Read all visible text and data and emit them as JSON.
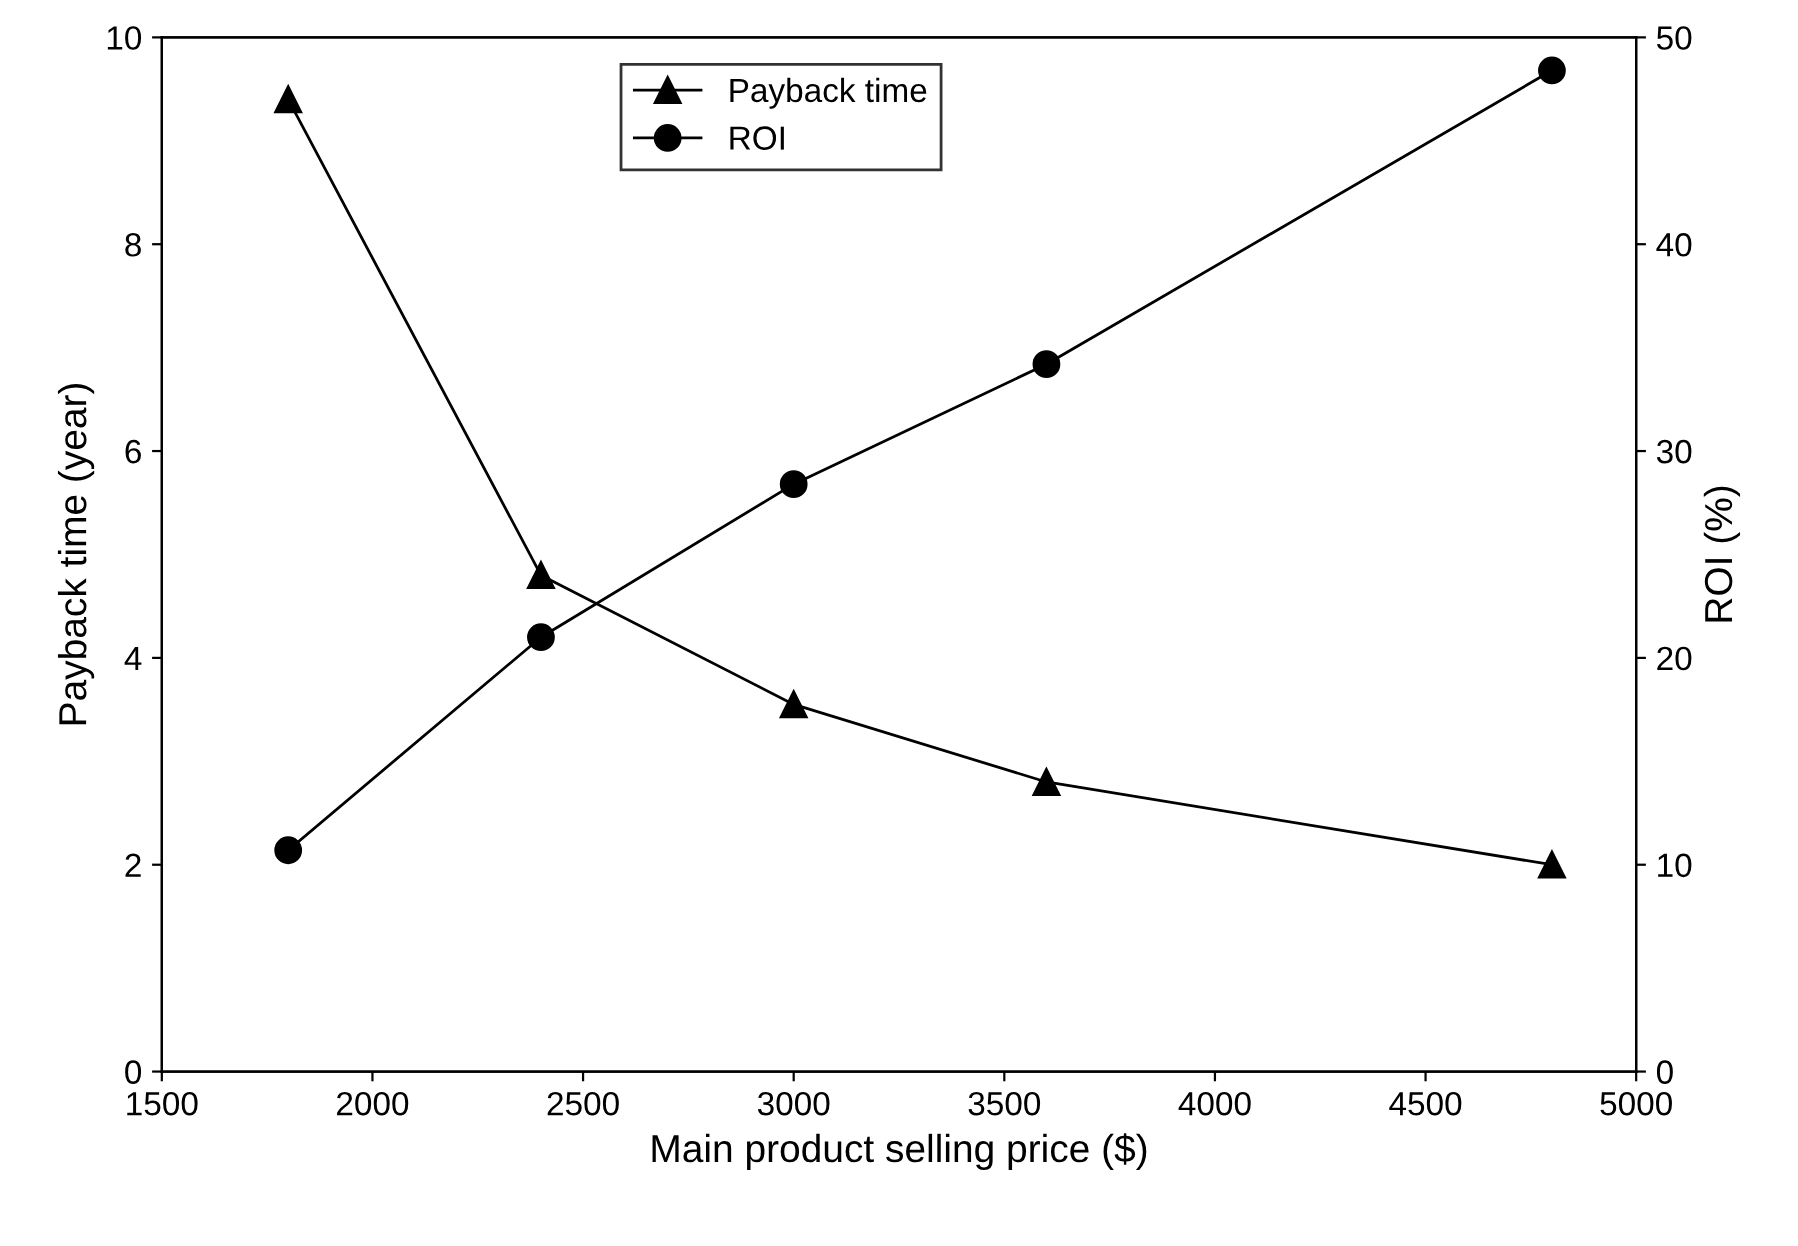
{
  "chart_data": {
    "type": "line",
    "xlabel": "Main product selling price ($)",
    "ylabel": "Payback time (year)",
    "y2label": "ROI (%)",
    "x": [
      1800,
      2400,
      3000,
      3600,
      4800
    ],
    "series": [
      {
        "name": "Payback time",
        "color": "#000000",
        "marker": "triangle",
        "values": [
          9.4,
          4.8,
          3.55,
          2.8,
          2.0
        ]
      },
      {
        "name": "ROI",
        "color": "#000000",
        "marker": "circle",
        "axis": "y2",
        "values": [
          10.7,
          21.0,
          28.4,
          34.2,
          48.4
        ]
      }
    ],
    "xlim": [
      1500,
      5000
    ],
    "xticks": [
      1500,
      2000,
      2500,
      3000,
      3500,
      4000,
      4500,
      5000
    ],
    "ylim": [
      0,
      10
    ],
    "yticks": [
      0,
      2,
      4,
      6,
      8,
      10
    ],
    "y2lim": [
      0,
      50
    ],
    "y2ticks": [
      0,
      10,
      20,
      30,
      40,
      50
    ],
    "legend": "top",
    "grid": false,
    "line_style": "solid"
  }
}
